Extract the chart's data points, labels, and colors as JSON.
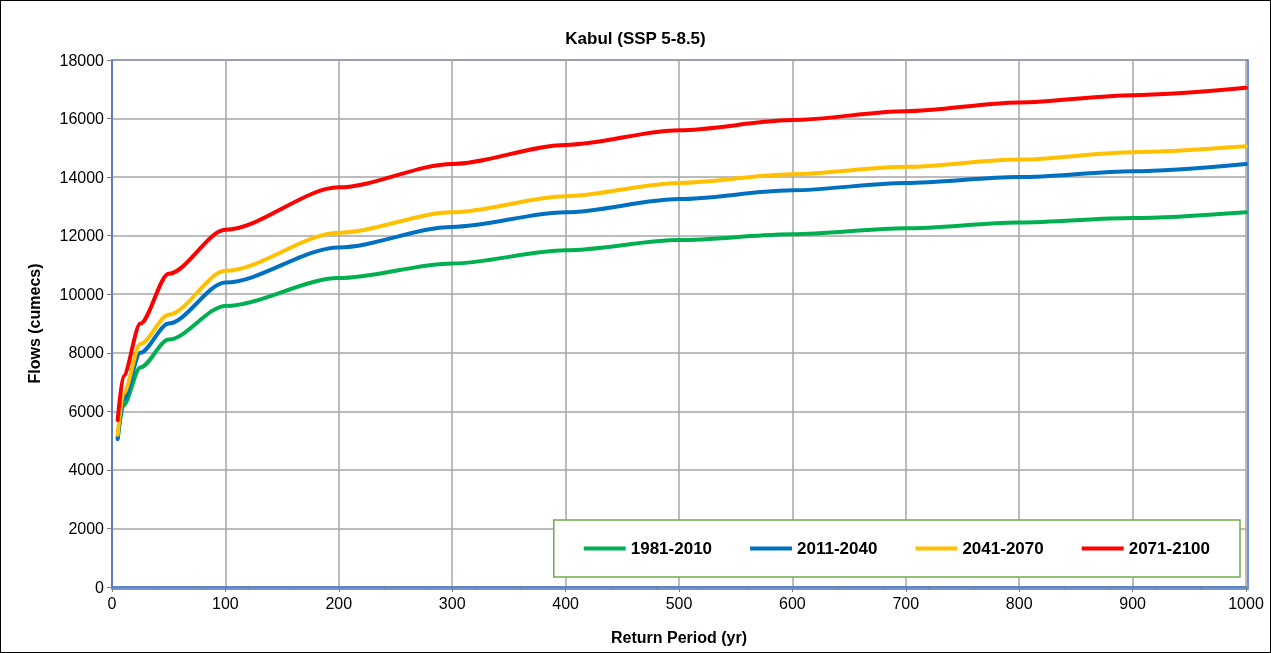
{
  "chart_data": {
    "type": "line",
    "title": "Kabul (SSP 5-8.5)",
    "xlabel": "Return Period (yr)",
    "ylabel": "Flows (cumecs)",
    "x": [
      5,
      10,
      25,
      50,
      100,
      200,
      300,
      400,
      500,
      600,
      700,
      800,
      900,
      1000
    ],
    "series": [
      {
        "name": "1981-2010",
        "color": "#00b050",
        "values": [
          5100,
          6200,
          7500,
          8450,
          9600,
          10550,
          11050,
          11500,
          11850,
          12050,
          12250,
          12450,
          12600,
          12800
        ]
      },
      {
        "name": "2011-2040",
        "color": "#0070c0",
        "values": [
          5050,
          6400,
          8000,
          9000,
          10400,
          11600,
          12300,
          12800,
          13250,
          13550,
          13800,
          14000,
          14200,
          14450
        ]
      },
      {
        "name": "2041-2070",
        "color": "#ffc000",
        "values": [
          5200,
          6600,
          8300,
          9300,
          10800,
          12100,
          12800,
          13350,
          13800,
          14100,
          14350,
          14600,
          14850,
          15050
        ]
      },
      {
        "name": "2071-2100",
        "color": "#ff0000",
        "values": [
          5700,
          7200,
          9000,
          10700,
          12200,
          13650,
          14450,
          15100,
          15600,
          15950,
          16250,
          16550,
          16800,
          17050
        ]
      }
    ],
    "xlim": [
      0,
      1000
    ],
    "xticks": [
      0,
      100,
      200,
      300,
      400,
      500,
      600,
      700,
      800,
      900,
      1000
    ],
    "ylim": [
      0,
      18000
    ],
    "yticks": [
      0,
      2000,
      4000,
      6000,
      8000,
      10000,
      12000,
      14000,
      16000,
      18000
    ],
    "grid": true,
    "legend": "bottom right",
    "marker": "none",
    "line_style": "solid"
  }
}
